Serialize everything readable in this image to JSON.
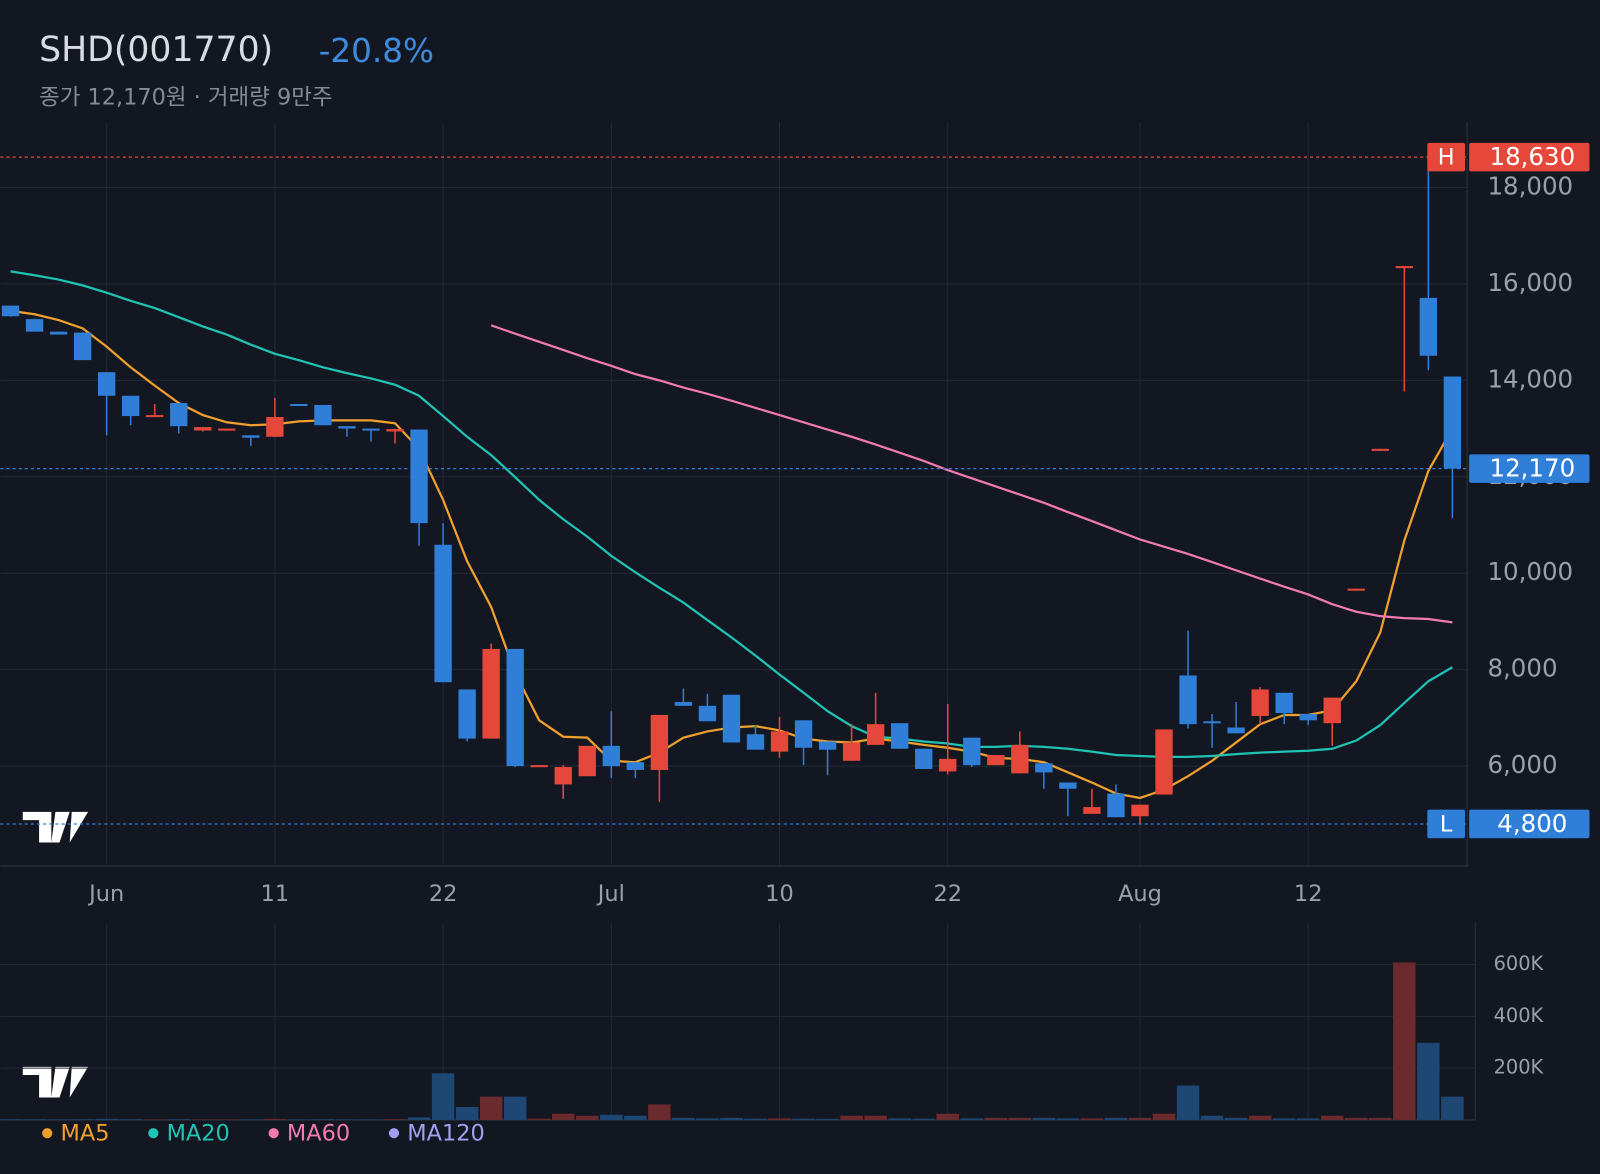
{
  "chart_data": [
    {
      "type": "candlestick",
      "title": "SHD(001770)",
      "change": "-20.8%",
      "subtitle": "종가 12,170원 · 거래량 9만주",
      "categories": [
        null,
        null,
        null,
        null,
        "Jun",
        null,
        null,
        null,
        null,
        null,
        null,
        "11",
        null,
        null,
        null,
        null,
        null,
        null,
        "22",
        null,
        null,
        null,
        null,
        null,
        null,
        "Jul",
        null,
        null,
        null,
        null,
        null,
        null,
        "10",
        null,
        null,
        null,
        null,
        null,
        null,
        "22",
        null,
        null,
        null,
        null,
        null,
        null,
        null,
        "Aug",
        null,
        null,
        null,
        null,
        null,
        null,
        "12",
        null,
        null,
        null,
        null,
        null,
        null
      ],
      "open": [
        15550,
        15270,
        15010,
        14990,
        14170,
        13680,
        13240,
        13530,
        12960,
        12980,
        12860,
        12830,
        13510,
        13490,
        13050,
        13000,
        12940,
        12980,
        10590,
        7590,
        6570,
        8430,
        5990,
        5620,
        5790,
        6420,
        6080,
        5920,
        7330,
        7250,
        7480,
        6660,
        6300,
        6950,
        6510,
        6110,
        6440,
        6890,
        6360,
        5890,
        6590,
        6020,
        5850,
        6060,
        5660,
        5010,
        5430,
        4960,
        5410,
        7880,
        6930,
        6800,
        7040,
        7520,
        7080,
        6890,
        9640,
        12540,
        16330,
        15710,
        14080
      ],
      "high": [
        15550,
        15280,
        15010,
        15000,
        14170,
        13680,
        13510,
        13530,
        13030,
        13000,
        12860,
        13640,
        13510,
        13490,
        13050,
        13000,
        13000,
        12980,
        11040,
        7590,
        8540,
        8430,
        6020,
        6020,
        6420,
        7140,
        6080,
        7060,
        7610,
        7500,
        7480,
        6850,
        7020,
        6950,
        6510,
        6870,
        7520,
        6890,
        6360,
        7290,
        6590,
        6230,
        6720,
        6060,
        5660,
        5530,
        5620,
        5200,
        6760,
        8810,
        7080,
        7330,
        7640,
        7520,
        7080,
        7420,
        9680,
        12580,
        16370,
        18630,
        14080
      ],
      "low": [
        15320,
        15010,
        14950,
        14420,
        12860,
        13070,
        13240,
        12900,
        12940,
        12960,
        12640,
        12830,
        13470,
        13070,
        12830,
        12730,
        12690,
        10570,
        7740,
        6510,
        6570,
        5980,
        5990,
        5320,
        5790,
        5750,
        5750,
        5260,
        7250,
        6930,
        6490,
        6340,
        6170,
        6020,
        5810,
        6110,
        6440,
        6360,
        5940,
        5830,
        5980,
        6020,
        5850,
        5530,
        4960,
        5010,
        4940,
        4800,
        5410,
        6780,
        6380,
        6680,
        6870,
        6870,
        6850,
        6420,
        9640,
        12540,
        13770,
        14210,
        11140
      ],
      "close": [
        15330,
        15010,
        14950,
        14420,
        13680,
        13260,
        13280,
        13050,
        13030,
        13000,
        12810,
        13240,
        13470,
        13070,
        13000,
        12960,
        12990,
        11040,
        7740,
        6570,
        8430,
        6000,
        6020,
        5980,
        6420,
        6000,
        5920,
        7060,
        7250,
        6930,
        6490,
        6340,
        6720,
        6380,
        6340,
        6490,
        6870,
        6360,
        5940,
        6150,
        6020,
        6230,
        6440,
        5870,
        5530,
        5150,
        4940,
        5200,
        6760,
        6870,
        6890,
        6680,
        7590,
        7100,
        6950,
        7420,
        9680,
        12580,
        16370,
        14510,
        12170
      ],
      "up_color": "#e5483b",
      "down_color": "#2f7ed8",
      "series": [
        {
          "name": "MA5",
          "color": "#f0a02c",
          "values": [
            15440,
            15370,
            15250,
            15080,
            14700,
            14270,
            13890,
            13530,
            13280,
            13130,
            13070,
            13090,
            13150,
            13170,
            13170,
            13170,
            13110,
            12580,
            11520,
            10250,
            9300,
            7930,
            6950,
            6610,
            6590,
            6110,
            6080,
            6280,
            6590,
            6720,
            6800,
            6830,
            6740,
            6570,
            6510,
            6490,
            6570,
            6510,
            6440,
            6380,
            6300,
            6170,
            6150,
            6080,
            5870,
            5660,
            5430,
            5340,
            5510,
            5790,
            6110,
            6490,
            6870,
            7060,
            7060,
            7160,
            7760,
            8770,
            10680,
            12120,
            13000
          ]
        },
        {
          "name": "MA20",
          "color": "#1fc4b4",
          "values": [
            16260,
            16180,
            16090,
            15970,
            15820,
            15650,
            15500,
            15310,
            15120,
            14950,
            14740,
            14550,
            14420,
            14270,
            14150,
            14040,
            13910,
            13680,
            13260,
            12830,
            12450,
            11990,
            11520,
            11120,
            10760,
            10360,
            10020,
            9700,
            9390,
            9030,
            8670,
            8290,
            7900,
            7520,
            7140,
            6830,
            6610,
            6570,
            6510,
            6470,
            6400,
            6400,
            6420,
            6400,
            6360,
            6300,
            6230,
            6210,
            6190,
            6190,
            6210,
            6250,
            6280,
            6300,
            6320,
            6360,
            6530,
            6850,
            7310,
            7760,
            8050
          ]
        },
        {
          "name": "MA60",
          "color": "#f17ab0",
          "values": [
            null,
            null,
            null,
            null,
            null,
            null,
            null,
            null,
            null,
            null,
            null,
            null,
            null,
            null,
            null,
            null,
            null,
            null,
            null,
            null,
            15140,
            14970,
            14800,
            14630,
            14460,
            14300,
            14130,
            14000,
            13850,
            13720,
            13580,
            13430,
            13280,
            13130,
            12980,
            12830,
            12670,
            12500,
            12330,
            12140,
            11970,
            11800,
            11630,
            11460,
            11270,
            11080,
            10890,
            10700,
            10550,
            10400,
            10230,
            10060,
            9890,
            9720,
            9560,
            9360,
            9200,
            9110,
            9070,
            9050,
            8980
          ]
        },
        {
          "name": "MA120",
          "color": "#a49ef0",
          "values": [
            null,
            null,
            null,
            null,
            null,
            null,
            null,
            null,
            null,
            null,
            null,
            null,
            null,
            null,
            null,
            null,
            null,
            null,
            null,
            null,
            null,
            null,
            null,
            null,
            null,
            null,
            null,
            null,
            null,
            null,
            null,
            null,
            null,
            null,
            null,
            null,
            null,
            null,
            null,
            null,
            null,
            null,
            null,
            null,
            null,
            null,
            null,
            null,
            null,
            null,
            null,
            null,
            null,
            null,
            null,
            null,
            null,
            null,
            null,
            null,
            null
          ]
        }
      ],
      "ylim": [
        3950,
        19350
      ],
      "yticks": [
        {
          "value": 6000,
          "label": "6,000"
        },
        {
          "value": 8000,
          "label": "8,000"
        },
        {
          "value": 10000,
          "label": "10,000"
        },
        {
          "value": 12000,
          "label": "12,000"
        },
        {
          "value": 14000,
          "label": "14,000"
        },
        {
          "value": 16000,
          "label": "16,000"
        },
        {
          "value": 18000,
          "label": "18,000"
        }
      ],
      "high_tag": "H",
      "high_mark": {
        "value": 18630,
        "label": "18,630"
      },
      "low_tag": "L",
      "low_mark": {
        "value": 4800,
        "label": "4,800"
      },
      "last_mark": {
        "value": 12170,
        "label": "12,170"
      },
      "grid": true
    },
    {
      "type": "bar",
      "values": [
        3000,
        3000,
        2000,
        3000,
        4000,
        3000,
        2000,
        3000,
        2000,
        2000,
        2000,
        4000,
        2000,
        3000,
        2000,
        2000,
        3000,
        10000,
        180000,
        50000,
        90000,
        90000,
        5000,
        24000,
        16000,
        20000,
        16000,
        60000,
        8000,
        6000,
        8000,
        5000,
        6000,
        5000,
        4000,
        16000,
        16000,
        6000,
        5000,
        24000,
        6000,
        8000,
        8000,
        8000,
        6000,
        6000,
        8000,
        8000,
        24000,
        133000,
        16000,
        8000,
        16000,
        6000,
        6000,
        16000,
        8000,
        8000,
        608000,
        298000,
        90000
      ],
      "up_color": "#6b2a2e",
      "down_color": "#1f4774",
      "ylim": [
        0,
        760000
      ],
      "yticks": [
        {
          "value": 200000,
          "label": "200K"
        },
        {
          "value": 400000,
          "label": "400K"
        },
        {
          "value": 600000,
          "label": "600K"
        }
      ],
      "grid": true
    }
  ]
}
